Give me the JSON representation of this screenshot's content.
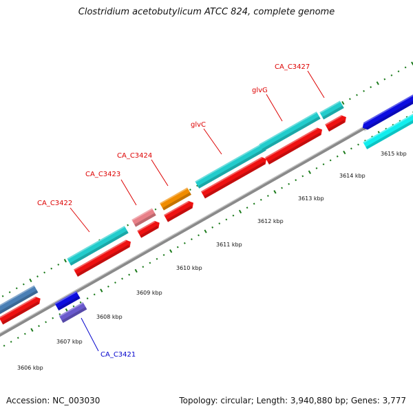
{
  "header": {
    "title": "Clostridium acetobutylicum ATCC 824, complete genome"
  },
  "footer": {
    "accession": "Accession: NC_003030",
    "topology": "Topology: circular; Length: 3,940,880 bp; Genes: 3,777"
  },
  "colors": {
    "backbone": "#888888",
    "tick": "#1a7a1a",
    "label_red": "#dd0000",
    "label_blue": "#0000cc",
    "cds": "#ee1111",
    "teal": "#22cccc",
    "blue": "#0d0de0",
    "steel": "#4a7fb5",
    "orange": "#f08c00",
    "pink": "#e88088",
    "purple": "#6a5acd",
    "cyan": "#11eeee"
  },
  "scale": {
    "ticks": [
      {
        "label": "3606 kbp"
      },
      {
        "label": "3607 kbp"
      },
      {
        "label": "3608 kbp"
      },
      {
        "label": "3609 kbp"
      },
      {
        "label": "3610 kbp"
      },
      {
        "label": "3611 kbp"
      },
      {
        "label": "3612 kbp"
      },
      {
        "label": "3613 kbp"
      },
      {
        "label": "3614 kbp"
      },
      {
        "label": "3615 kbp"
      }
    ]
  },
  "features": [
    {
      "label": "CA_C3421",
      "color": "blue"
    },
    {
      "label": "CA_C3422",
      "color": "red"
    },
    {
      "label": "CA_C3423",
      "color": "red"
    },
    {
      "label": "CA_C3424",
      "color": "red"
    },
    {
      "label": "glvC",
      "color": "red"
    },
    {
      "label": "glvG",
      "color": "red"
    },
    {
      "label": "CA_C3427",
      "color": "red"
    }
  ]
}
